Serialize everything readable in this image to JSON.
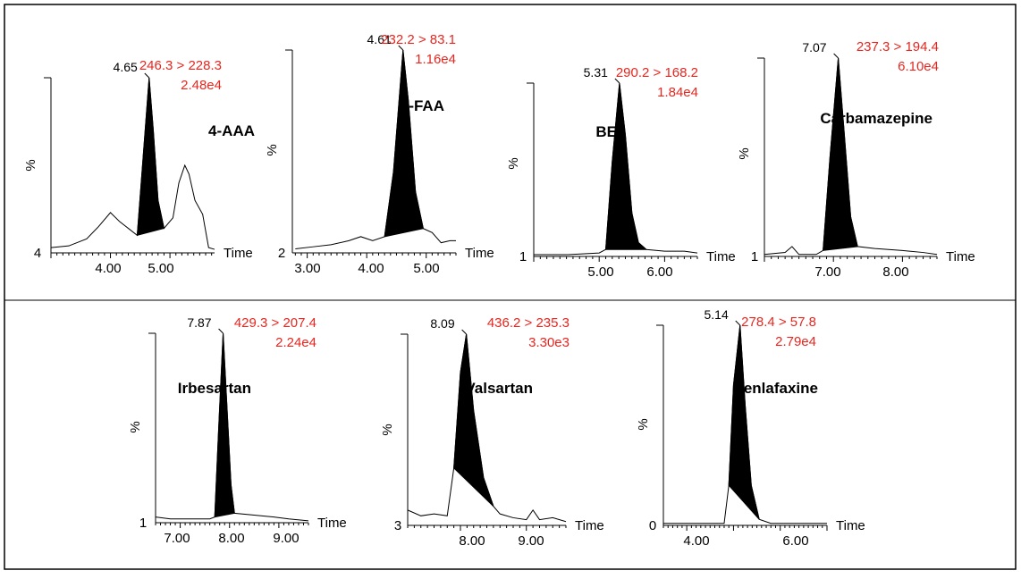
{
  "colors": {
    "frame": "#000000",
    "transition": "#e8261f",
    "peak_fill": "#000000",
    "trace": "#000000"
  },
  "axis_labels": {
    "y": "%",
    "x": "Time"
  },
  "chart_data": [
    {
      "type": "line",
      "compound": "4-AAA",
      "mrm_transition": "246.3 > 228.3",
      "intensity": "2.48e4",
      "peak_rt": "4.65",
      "y_axis_base": "4",
      "xlim": [
        3.0,
        5.75
      ],
      "ylim": [
        0,
        100
      ],
      "x_ticks": [
        4.0,
        5.0
      ],
      "x_tick_labels": [
        "4.00",
        "5.00"
      ],
      "peak_range": [
        4.45,
        4.9
      ],
      "trace": [
        [
          3.0,
          3
        ],
        [
          3.3,
          4
        ],
        [
          3.6,
          8
        ],
        [
          3.8,
          15
        ],
        [
          4.0,
          23
        ],
        [
          4.15,
          18
        ],
        [
          4.3,
          14
        ],
        [
          4.45,
          10
        ],
        [
          4.55,
          55
        ],
        [
          4.65,
          100
        ],
        [
          4.72,
          70
        ],
        [
          4.8,
          30
        ],
        [
          4.9,
          14
        ],
        [
          5.05,
          20
        ],
        [
          5.15,
          40
        ],
        [
          5.25,
          50
        ],
        [
          5.32,
          45
        ],
        [
          5.42,
          30
        ],
        [
          5.55,
          22
        ],
        [
          5.65,
          3
        ],
        [
          5.75,
          2
        ]
      ]
    },
    {
      "type": "line",
      "compound": "4-FAA",
      "mrm_transition": "232.2 > 83.1",
      "intensity": "1.16e4",
      "peak_rt": "4.61",
      "y_axis_base": "2",
      "xlim": [
        2.75,
        5.5
      ],
      "ylim": [
        0,
        100
      ],
      "x_ticks": [
        3.0,
        4.0,
        5.0
      ],
      "x_tick_labels": [
        "3.00",
        "4.00",
        "5.00"
      ],
      "peak_range": [
        4.3,
        4.95
      ],
      "trace": [
        [
          2.8,
          2
        ],
        [
          3.1,
          3
        ],
        [
          3.4,
          4
        ],
        [
          3.7,
          6
        ],
        [
          3.9,
          8
        ],
        [
          4.1,
          6
        ],
        [
          4.3,
          8
        ],
        [
          4.45,
          40
        ],
        [
          4.61,
          100
        ],
        [
          4.7,
          75
        ],
        [
          4.82,
          30
        ],
        [
          4.95,
          12
        ],
        [
          5.1,
          10
        ],
        [
          5.25,
          5
        ],
        [
          5.4,
          6
        ],
        [
          5.5,
          6
        ]
      ]
    },
    {
      "type": "line",
      "compound": "BE",
      "mrm_transition": "290.2 > 168.2",
      "intensity": "1.84e4",
      "peak_rt": "5.31",
      "y_axis_base": "1",
      "xlim": [
        4.0,
        6.5
      ],
      "ylim": [
        0,
        100
      ],
      "x_ticks": [
        5.0,
        6.0
      ],
      "x_tick_labels": [
        "5.00",
        "6.00"
      ],
      "peak_range": [
        5.1,
        5.72
      ],
      "trace": [
        [
          4.0,
          1
        ],
        [
          4.5,
          1
        ],
        [
          5.0,
          2
        ],
        [
          5.1,
          4
        ],
        [
          5.2,
          55
        ],
        [
          5.31,
          100
        ],
        [
          5.4,
          70
        ],
        [
          5.5,
          25
        ],
        [
          5.6,
          8
        ],
        [
          5.72,
          4
        ],
        [
          6.0,
          3
        ],
        [
          6.3,
          3
        ],
        [
          6.5,
          2
        ]
      ]
    },
    {
      "type": "line",
      "compound": "Carbamazepine",
      "mrm_transition": "237.3 > 194.4",
      "intensity": "6.10e4",
      "peak_rt": "7.07",
      "y_axis_base": "1",
      "xlim": [
        6.0,
        8.5
      ],
      "ylim": [
        0,
        100
      ],
      "x_ticks": [
        7.0,
        8.0
      ],
      "x_tick_labels": [
        "7.00",
        "8.00"
      ],
      "peak_range": [
        6.85,
        7.35
      ],
      "trace": [
        [
          6.0,
          1
        ],
        [
          6.3,
          2
        ],
        [
          6.4,
          5
        ],
        [
          6.5,
          1
        ],
        [
          6.75,
          1
        ],
        [
          6.85,
          3
        ],
        [
          6.95,
          50
        ],
        [
          7.07,
          100
        ],
        [
          7.15,
          65
        ],
        [
          7.25,
          20
        ],
        [
          7.35,
          5
        ],
        [
          7.6,
          4
        ],
        [
          8.0,
          3
        ],
        [
          8.3,
          2
        ],
        [
          8.5,
          1
        ]
      ]
    },
    {
      "type": "line",
      "compound": "Irbesartan",
      "mrm_transition": "429.3 > 207.4",
      "intensity": "2.24e4",
      "peak_rt": "7.87",
      "y_axis_base": "1",
      "xlim": [
        6.5,
        9.6
      ],
      "ylim": [
        0,
        100
      ],
      "x_ticks": [
        7.0,
        8.0,
        9.0
      ],
      "x_tick_labels": [
        "7.00",
        "8.00",
        "9.00"
      ],
      "peak_range": [
        7.7,
        8.1
      ],
      "trace": [
        [
          6.5,
          3
        ],
        [
          6.8,
          2
        ],
        [
          7.2,
          2
        ],
        [
          7.6,
          2
        ],
        [
          7.7,
          3
        ],
        [
          7.78,
          50
        ],
        [
          7.87,
          100
        ],
        [
          7.95,
          60
        ],
        [
          8.03,
          20
        ],
        [
          8.1,
          5
        ],
        [
          8.5,
          4
        ],
        [
          8.9,
          3
        ],
        [
          9.2,
          2
        ],
        [
          9.6,
          1
        ]
      ]
    },
    {
      "type": "line",
      "compound": "Valsartan",
      "mrm_transition": "436.2 > 235.3",
      "intensity": "3.30e3",
      "peak_rt": "8.09",
      "y_axis_base": "3",
      "xlim": [
        7.2,
        9.6
      ],
      "ylim": [
        0,
        100
      ],
      "x_ticks": [
        8.0,
        9.0
      ],
      "x_tick_labels": [
        "8.00",
        "9.00"
      ],
      "peak_range": [
        7.85,
        8.55
      ],
      "trace": [
        [
          7.2,
          8
        ],
        [
          7.4,
          5
        ],
        [
          7.6,
          6
        ],
        [
          7.8,
          5
        ],
        [
          7.9,
          30
        ],
        [
          8.0,
          80
        ],
        [
          8.09,
          100
        ],
        [
          8.2,
          60
        ],
        [
          8.35,
          25
        ],
        [
          8.5,
          10
        ],
        [
          8.6,
          6
        ],
        [
          8.8,
          4
        ],
        [
          9.0,
          3
        ],
        [
          9.1,
          8
        ],
        [
          9.2,
          3
        ],
        [
          9.4,
          4
        ],
        [
          9.6,
          2
        ]
      ]
    },
    {
      "type": "line",
      "compound": "Venlafaxine",
      "mrm_transition": "278.4 > 57.8",
      "intensity": "2.79e4",
      "peak_rt": "5.14",
      "y_axis_base": "0",
      "xlim": [
        3.5,
        7.0
      ],
      "ylim": [
        0,
        100
      ],
      "x_ticks": [
        4.0,
        6.0
      ],
      "x_tick_labels": [
        "4.00",
        "6.00"
      ],
      "peak_range": [
        4.85,
        5.55
      ],
      "trace": [
        [
          3.5,
          1
        ],
        [
          4.0,
          1
        ],
        [
          4.5,
          1
        ],
        [
          4.8,
          1
        ],
        [
          4.9,
          20
        ],
        [
          5.0,
          70
        ],
        [
          5.14,
          100
        ],
        [
          5.25,
          60
        ],
        [
          5.38,
          20
        ],
        [
          5.55,
          3
        ],
        [
          5.8,
          1
        ],
        [
          6.5,
          1
        ],
        [
          7.0,
          1
        ]
      ]
    }
  ]
}
